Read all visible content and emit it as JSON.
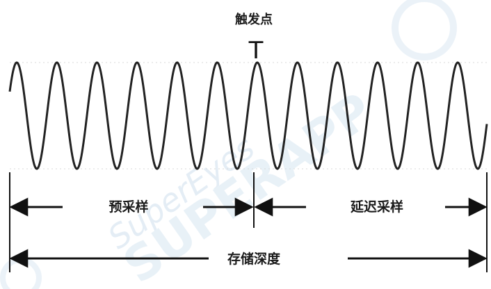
{
  "diagram": {
    "trigger_label": "触发点",
    "trigger_marker": "T",
    "pre_sample_label": "预采样",
    "post_sample_label": "延迟采样",
    "storage_depth_label": "存储深度",
    "watermark_lines": [
      "SuperEyes",
      "SUPERAPP"
    ],
    "signal": {
      "type": "sine",
      "cycles": 12
    },
    "colors": {
      "wave": "#222222",
      "lines": "#111111",
      "watermark": "#cfe0ee",
      "gridline": "#d9d9d9"
    }
  }
}
